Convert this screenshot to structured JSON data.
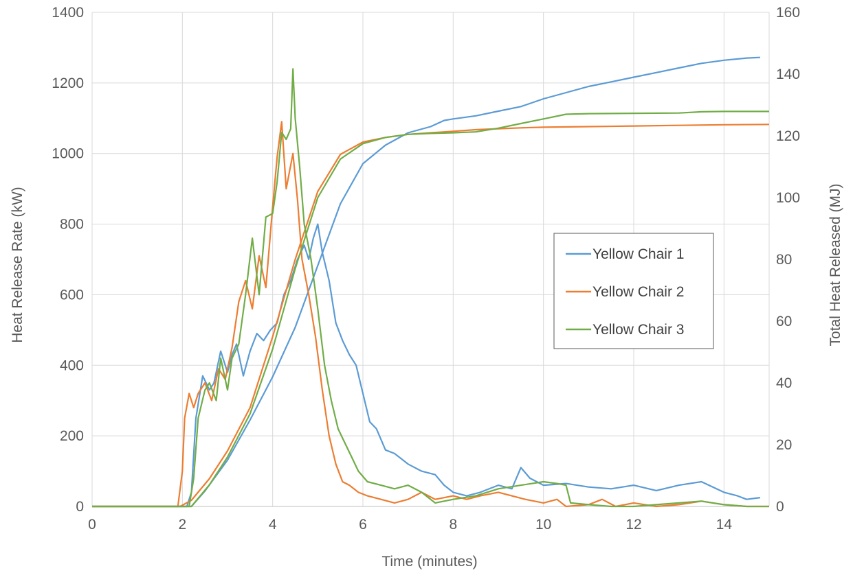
{
  "chart_data": {
    "type": "line",
    "xlabel": "Time (minutes)",
    "ylabel": "Heat Release Rate (kW)",
    "y2label": "Total Heat Released (MJ)",
    "xlim": [
      0,
      15
    ],
    "ylim": [
      0,
      1400
    ],
    "y2lim": [
      0,
      160
    ],
    "x_ticks": [
      0,
      2,
      4,
      6,
      8,
      10,
      12,
      14
    ],
    "y_ticks": [
      0,
      200,
      400,
      600,
      800,
      1000,
      1200,
      1400
    ],
    "y2_ticks": [
      0,
      20,
      40,
      60,
      80,
      100,
      120,
      140,
      160
    ],
    "grid": true,
    "legend_position": "right",
    "series": [
      {
        "name": "Yellow Chair 1",
        "color": "#5b9bd5",
        "hrr": [
          [
            0,
            0
          ],
          [
            2.1,
            0
          ],
          [
            2.2,
            40
          ],
          [
            2.3,
            250
          ],
          [
            2.45,
            370
          ],
          [
            2.6,
            330
          ],
          [
            2.7,
            350
          ],
          [
            2.85,
            440
          ],
          [
            3.0,
            380
          ],
          [
            3.1,
            430
          ],
          [
            3.2,
            460
          ],
          [
            3.35,
            370
          ],
          [
            3.5,
            440
          ],
          [
            3.65,
            490
          ],
          [
            3.8,
            470
          ],
          [
            3.95,
            500
          ],
          [
            4.1,
            520
          ],
          [
            4.25,
            600
          ],
          [
            4.4,
            640
          ],
          [
            4.55,
            700
          ],
          [
            4.7,
            740
          ],
          [
            4.8,
            700
          ],
          [
            4.9,
            760
          ],
          [
            5.0,
            800
          ],
          [
            5.1,
            720
          ],
          [
            5.25,
            640
          ],
          [
            5.4,
            520
          ],
          [
            5.55,
            470
          ],
          [
            5.7,
            430
          ],
          [
            5.85,
            400
          ],
          [
            6.0,
            320
          ],
          [
            6.15,
            240
          ],
          [
            6.3,
            220
          ],
          [
            6.5,
            160
          ],
          [
            6.7,
            150
          ],
          [
            7.0,
            120
          ],
          [
            7.3,
            100
          ],
          [
            7.6,
            90
          ],
          [
            7.8,
            60
          ],
          [
            8.0,
            40
          ],
          [
            8.3,
            30
          ],
          [
            8.6,
            40
          ],
          [
            9.0,
            60
          ],
          [
            9.3,
            50
          ],
          [
            9.5,
            110
          ],
          [
            9.7,
            80
          ],
          [
            10.0,
            60
          ],
          [
            10.5,
            65
          ],
          [
            11.0,
            55
          ],
          [
            11.5,
            50
          ],
          [
            12.0,
            60
          ],
          [
            12.5,
            45
          ],
          [
            13.0,
            60
          ],
          [
            13.5,
            70
          ],
          [
            14.0,
            40
          ],
          [
            14.3,
            30
          ],
          [
            14.5,
            20
          ],
          [
            14.8,
            25
          ]
        ],
        "thr": [
          [
            0,
            0
          ],
          [
            2.2,
            0
          ],
          [
            2.5,
            5
          ],
          [
            3.0,
            15
          ],
          [
            3.5,
            28
          ],
          [
            4.0,
            42
          ],
          [
            4.5,
            58
          ],
          [
            5.0,
            78
          ],
          [
            5.5,
            98
          ],
          [
            6.0,
            111
          ],
          [
            6.5,
            117
          ],
          [
            7.0,
            121
          ],
          [
            7.5,
            123
          ],
          [
            7.8,
            125
          ],
          [
            8.0,
            125.5
          ],
          [
            8.5,
            126.5
          ],
          [
            9.0,
            128
          ],
          [
            9.5,
            129.5
          ],
          [
            10.0,
            132
          ],
          [
            10.5,
            134
          ],
          [
            11.0,
            136
          ],
          [
            11.5,
            137.5
          ],
          [
            12.0,
            139
          ],
          [
            12.5,
            140.5
          ],
          [
            13.0,
            142
          ],
          [
            13.5,
            143.5
          ],
          [
            14.0,
            144.5
          ],
          [
            14.5,
            145.2
          ],
          [
            14.8,
            145.4
          ]
        ]
      },
      {
        "name": "Yellow Chair 2",
        "color": "#ed7d31",
        "hrr": [
          [
            0,
            0
          ],
          [
            1.9,
            0
          ],
          [
            2.0,
            100
          ],
          [
            2.05,
            250
          ],
          [
            2.15,
            320
          ],
          [
            2.25,
            280
          ],
          [
            2.35,
            320
          ],
          [
            2.5,
            350
          ],
          [
            2.65,
            300
          ],
          [
            2.8,
            390
          ],
          [
            2.95,
            360
          ],
          [
            3.1,
            450
          ],
          [
            3.25,
            580
          ],
          [
            3.4,
            640
          ],
          [
            3.55,
            560
          ],
          [
            3.7,
            710
          ],
          [
            3.85,
            620
          ],
          [
            4.0,
            850
          ],
          [
            4.1,
            990
          ],
          [
            4.2,
            1090
          ],
          [
            4.3,
            900
          ],
          [
            4.45,
            1000
          ],
          [
            4.55,
            870
          ],
          [
            4.65,
            700
          ],
          [
            4.8,
            600
          ],
          [
            4.95,
            480
          ],
          [
            5.1,
            330
          ],
          [
            5.25,
            200
          ],
          [
            5.4,
            120
          ],
          [
            5.55,
            70
          ],
          [
            5.7,
            60
          ],
          [
            5.9,
            40
          ],
          [
            6.1,
            30
          ],
          [
            6.4,
            20
          ],
          [
            6.7,
            10
          ],
          [
            7.0,
            20
          ],
          [
            7.3,
            40
          ],
          [
            7.6,
            20
          ],
          [
            8.0,
            30
          ],
          [
            8.3,
            20
          ],
          [
            8.6,
            30
          ],
          [
            9.0,
            40
          ],
          [
            9.3,
            30
          ],
          [
            9.6,
            20
          ],
          [
            10.0,
            10
          ],
          [
            10.3,
            20
          ],
          [
            10.5,
            0
          ],
          [
            11.0,
            5
          ],
          [
            11.3,
            20
          ],
          [
            11.6,
            0
          ],
          [
            12.0,
            10
          ],
          [
            12.5,
            0
          ],
          [
            13.0,
            5
          ],
          [
            13.5,
            15
          ],
          [
            14.0,
            5
          ],
          [
            14.5,
            0
          ],
          [
            15.0,
            0
          ]
        ],
        "thr": [
          [
            0,
            0
          ],
          [
            1.95,
            0
          ],
          [
            2.2,
            2
          ],
          [
            2.6,
            9
          ],
          [
            3.0,
            18
          ],
          [
            3.5,
            32
          ],
          [
            4.0,
            55
          ],
          [
            4.5,
            80
          ],
          [
            5.0,
            102
          ],
          [
            5.5,
            114
          ],
          [
            6.0,
            118
          ],
          [
            6.5,
            119.5
          ],
          [
            7.0,
            120.5
          ],
          [
            7.5,
            121
          ],
          [
            8.0,
            121.5
          ],
          [
            8.5,
            122
          ],
          [
            9.0,
            122.3
          ],
          [
            9.5,
            122.6
          ],
          [
            10.0,
            122.8
          ],
          [
            11.0,
            123
          ],
          [
            12.0,
            123.2
          ],
          [
            13.0,
            123.4
          ],
          [
            14.0,
            123.6
          ],
          [
            15.0,
            123.7
          ]
        ]
      },
      {
        "name": "Yellow Chair 3",
        "color": "#70ad47",
        "hrr": [
          [
            0,
            0
          ],
          [
            2.15,
            0
          ],
          [
            2.25,
            80
          ],
          [
            2.35,
            250
          ],
          [
            2.5,
            330
          ],
          [
            2.6,
            350
          ],
          [
            2.75,
            300
          ],
          [
            2.85,
            420
          ],
          [
            3.0,
            330
          ],
          [
            3.1,
            420
          ],
          [
            3.25,
            460
          ],
          [
            3.4,
            600
          ],
          [
            3.55,
            760
          ],
          [
            3.7,
            600
          ],
          [
            3.85,
            820
          ],
          [
            4.0,
            830
          ],
          [
            4.1,
            920
          ],
          [
            4.2,
            1060
          ],
          [
            4.3,
            1040
          ],
          [
            4.4,
            1070
          ],
          [
            4.45,
            1240
          ],
          [
            4.5,
            1100
          ],
          [
            4.6,
            960
          ],
          [
            4.7,
            800
          ],
          [
            4.85,
            700
          ],
          [
            5.0,
            560
          ],
          [
            5.15,
            400
          ],
          [
            5.3,
            300
          ],
          [
            5.45,
            220
          ],
          [
            5.6,
            180
          ],
          [
            5.75,
            140
          ],
          [
            5.9,
            100
          ],
          [
            6.1,
            70
          ],
          [
            6.4,
            60
          ],
          [
            6.7,
            50
          ],
          [
            7.0,
            60
          ],
          [
            7.3,
            40
          ],
          [
            7.6,
            10
          ],
          [
            8.0,
            20
          ],
          [
            8.5,
            30
          ],
          [
            9.0,
            50
          ],
          [
            9.5,
            60
          ],
          [
            10.0,
            70
          ],
          [
            10.3,
            65
          ],
          [
            10.5,
            60
          ],
          [
            10.6,
            10
          ],
          [
            11.0,
            5
          ],
          [
            11.5,
            0
          ],
          [
            12.0,
            0
          ],
          [
            12.5,
            5
          ],
          [
            13.0,
            10
          ],
          [
            13.5,
            15
          ],
          [
            14.0,
            5
          ],
          [
            14.5,
            0
          ],
          [
            15.0,
            0
          ]
        ],
        "thr": [
          [
            0,
            0
          ],
          [
            2.2,
            0
          ],
          [
            2.6,
            7
          ],
          [
            3.0,
            16
          ],
          [
            3.5,
            30
          ],
          [
            4.0,
            51
          ],
          [
            4.5,
            77
          ],
          [
            5.0,
            100
          ],
          [
            5.5,
            112.5
          ],
          [
            6.0,
            117.5
          ],
          [
            6.5,
            119.5
          ],
          [
            7.0,
            120.5
          ],
          [
            7.5,
            120.8
          ],
          [
            8.0,
            121
          ],
          [
            8.5,
            121.3
          ],
          [
            9.0,
            122.5
          ],
          [
            9.5,
            124
          ],
          [
            10.0,
            125.5
          ],
          [
            10.5,
            127
          ],
          [
            11.0,
            127.2
          ],
          [
            12.0,
            127.3
          ],
          [
            13.0,
            127.4
          ],
          [
            13.5,
            127.8
          ],
          [
            14.0,
            127.9
          ],
          [
            15.0,
            127.9
          ]
        ]
      }
    ]
  }
}
